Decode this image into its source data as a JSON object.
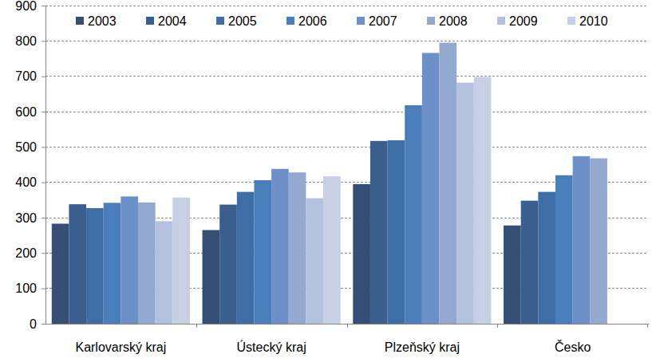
{
  "chart_data": {
    "type": "bar",
    "categories": [
      "Karlovarský kraj",
      "Ústecký kraj",
      "Plzeňský kraj",
      "Česko"
    ],
    "series": [
      {
        "name": "2003",
        "color": "#344e74",
        "values": [
          283,
          265,
          395,
          278
        ]
      },
      {
        "name": "2004",
        "color": "#3a5f8e",
        "values": [
          338,
          337,
          517,
          348
        ]
      },
      {
        "name": "2005",
        "color": "#3f6ea6",
        "values": [
          327,
          373,
          519,
          373
        ]
      },
      {
        "name": "2006",
        "color": "#4a7ebb",
        "values": [
          342,
          406,
          618,
          420
        ]
      },
      {
        "name": "2007",
        "color": "#6d90c8",
        "values": [
          360,
          438,
          766,
          474
        ]
      },
      {
        "name": "2008",
        "color": "#93a9d0",
        "values": [
          343,
          428,
          795,
          468
        ]
      },
      {
        "name": "2009",
        "color": "#b3c0de",
        "values": [
          290,
          355,
          682,
          null
        ]
      },
      {
        "name": "2010",
        "color": "#c6cfe4",
        "values": [
          357,
          417,
          698,
          null
        ]
      }
    ],
    "ylim": [
      0,
      900
    ],
    "yticks": [
      0,
      100,
      200,
      300,
      400,
      500,
      600,
      700,
      800,
      900
    ],
    "grid": true,
    "legend": "top"
  }
}
